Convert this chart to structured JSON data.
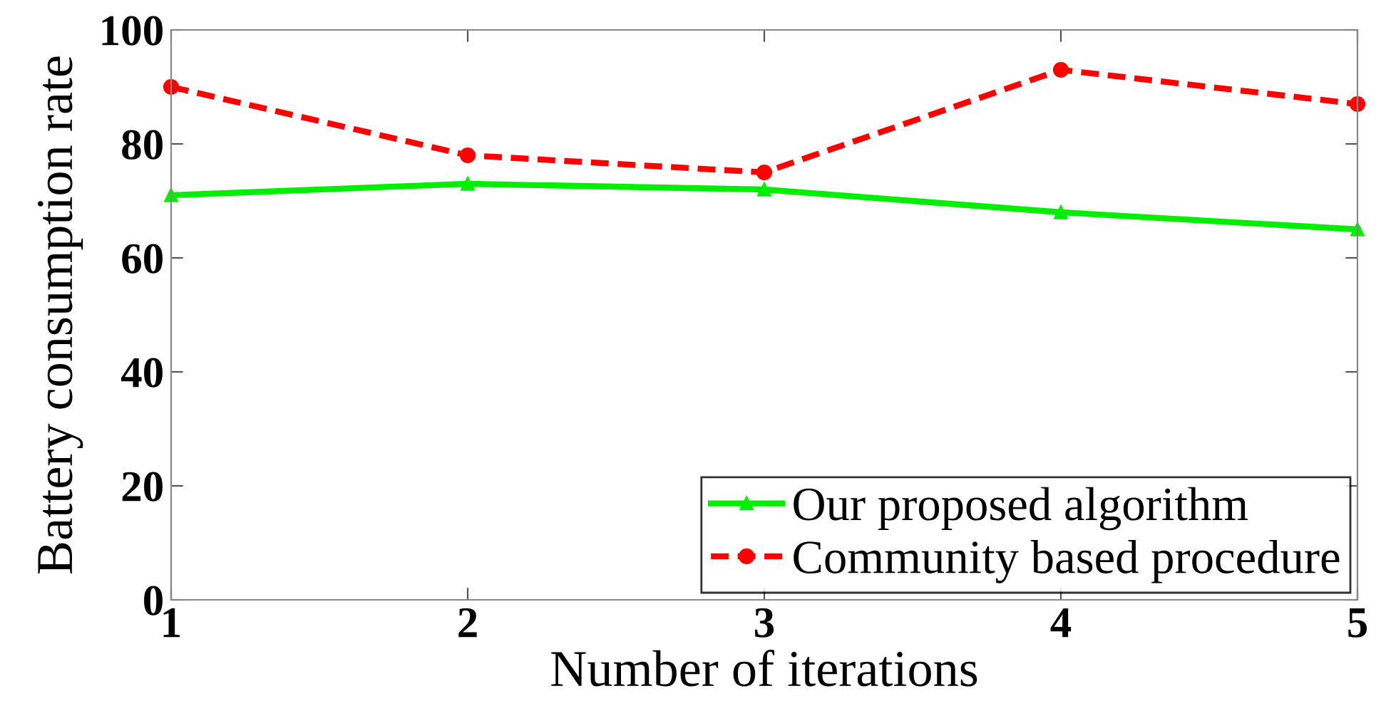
{
  "chart_data": {
    "type": "line",
    "xlabel": "Number of iterations",
    "ylabel": "Battery consumption rate",
    "x": [
      1,
      2,
      3,
      4,
      5
    ],
    "xlim": [
      1,
      5
    ],
    "xticks": [
      1,
      2,
      3,
      4,
      5
    ],
    "ylim": [
      0,
      100
    ],
    "yticks": [
      0,
      20,
      40,
      60,
      80,
      100
    ],
    "grid": false,
    "legend": "bottom right",
    "series": [
      {
        "name": "Our proposed algorithm",
        "color": "#00ee00",
        "values": [
          71,
          73,
          72,
          68,
          65
        ],
        "marker": "triangle",
        "line_style": "solid"
      },
      {
        "name": "Community based procedure",
        "color": "#ff0000",
        "values": [
          90,
          78,
          75,
          93,
          87
        ],
        "marker": "circle",
        "line_style": "dashed"
      }
    ]
  }
}
